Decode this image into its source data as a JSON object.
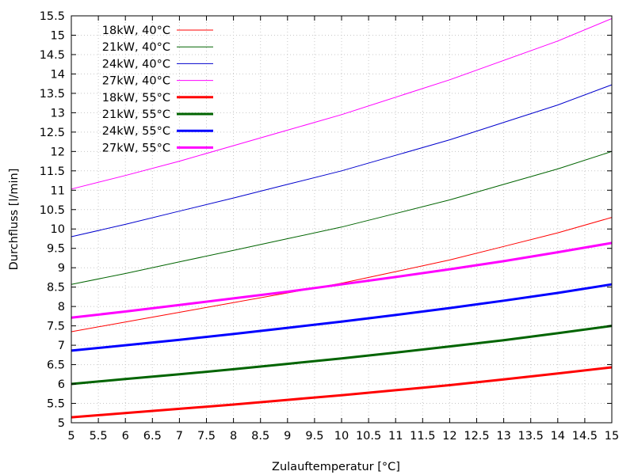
{
  "chart_data": {
    "type": "line",
    "title": "",
    "xlabel": "Zulauftemperatur [°C]",
    "ylabel": "Durchfluss [l/min]",
    "xlim": [
      5,
      15
    ],
    "ylim": [
      5,
      15.5
    ],
    "x_ticks": [
      5,
      5.5,
      6,
      6.5,
      7,
      7.5,
      8,
      8.5,
      9,
      9.5,
      10,
      10.5,
      11,
      11.5,
      12,
      12.5,
      13,
      13.5,
      14,
      14.5,
      15
    ],
    "y_ticks": [
      5,
      5.5,
      6,
      6.5,
      7,
      7.5,
      8,
      8.5,
      9,
      9.5,
      10,
      10.5,
      11,
      11.5,
      12,
      12.5,
      13,
      13.5,
      14,
      14.5,
      15,
      15.5
    ],
    "grid": true,
    "legend_position": "top-left",
    "x": [
      5,
      6,
      7,
      8,
      9,
      10,
      11,
      12,
      13,
      14,
      15
    ],
    "series": [
      {
        "name": "18kW, 40°C",
        "color": "#ff0000",
        "width": "thin",
        "values": [
          7.35,
          7.6,
          7.85,
          8.1,
          8.35,
          8.6,
          8.9,
          9.2,
          9.55,
          9.9,
          10.3
        ]
      },
      {
        "name": "21kW, 40°C",
        "color": "#006400",
        "width": "thin",
        "values": [
          8.57,
          8.85,
          9.15,
          9.45,
          9.75,
          10.05,
          10.4,
          10.75,
          11.15,
          11.55,
          12.0
        ]
      },
      {
        "name": "24kW, 40°C",
        "color": "#0000cd",
        "width": "thin",
        "values": [
          9.8,
          10.12,
          10.46,
          10.8,
          11.15,
          11.5,
          11.9,
          12.3,
          12.75,
          13.2,
          13.72
        ]
      },
      {
        "name": "27kW, 40°C",
        "color": "#ff00ff",
        "width": "thin",
        "values": [
          11.03,
          11.38,
          11.75,
          12.15,
          12.55,
          12.95,
          13.4,
          13.85,
          14.35,
          14.85,
          15.43
        ]
      },
      {
        "name": "18kW, 55°C",
        "color": "#ff0000",
        "width": "thick",
        "values": [
          5.14,
          5.25,
          5.36,
          5.47,
          5.59,
          5.71,
          5.84,
          5.97,
          6.12,
          6.27,
          6.43
        ]
      },
      {
        "name": "21kW, 55°C",
        "color": "#006400",
        "width": "thick",
        "values": [
          6.0,
          6.13,
          6.25,
          6.38,
          6.52,
          6.66,
          6.81,
          6.97,
          7.13,
          7.31,
          7.5
        ]
      },
      {
        "name": "24kW, 55°C",
        "color": "#0000ff",
        "width": "thick",
        "values": [
          6.86,
          7.0,
          7.14,
          7.29,
          7.45,
          7.61,
          7.78,
          7.96,
          8.15,
          8.35,
          8.57
        ]
      },
      {
        "name": "27kW, 55°C",
        "color": "#ff00ff",
        "width": "thick",
        "values": [
          7.71,
          7.87,
          8.04,
          8.21,
          8.38,
          8.57,
          8.76,
          8.96,
          9.17,
          9.4,
          9.64
        ]
      }
    ]
  }
}
